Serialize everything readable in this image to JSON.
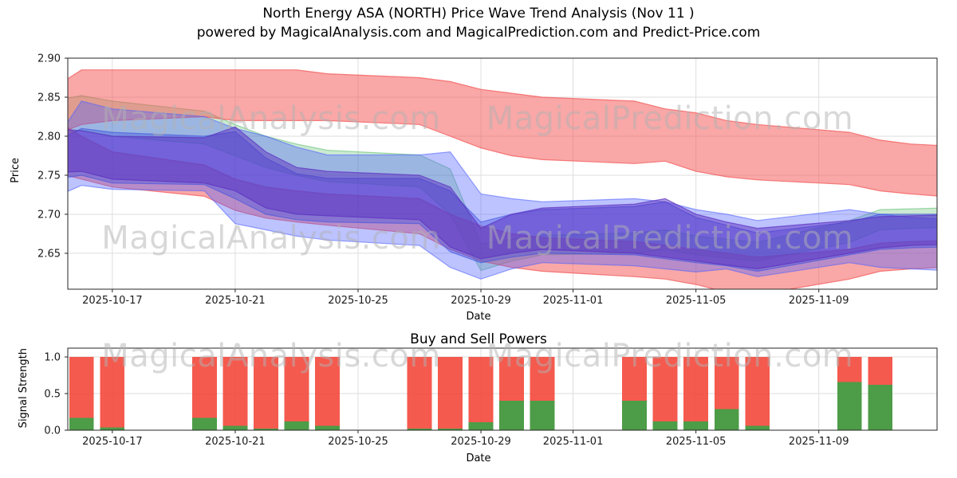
{
  "header": {
    "title": "North Energy ASA (NORTH) Price Wave Trend Analysis (Nov 11 )",
    "subtitle": "powered by MagicalAnalysis.com and MagicalPrediction.com and Predict-Price.com"
  },
  "watermarks": {
    "analysis": "MagicalAnalysis.com",
    "prediction": "MagicalPrediction.com"
  },
  "price_chart": {
    "ylabel": "Price",
    "xlabel": "Date"
  },
  "power_chart": {
    "title": "Buy and Sell Powers",
    "ylabel": "Signal Strength",
    "xlabel": "Date"
  },
  "chart_data": [
    {
      "type": "area",
      "title": "North Energy ASA (NORTH) Price Wave Trend Analysis (Nov 11 )",
      "xlabel": "Date",
      "ylabel": "Price",
      "grid": true,
      "x_start": "2025-10-15",
      "xlim_days": [
        0.55,
        28.85
      ],
      "ylim": [
        2.604,
        2.9
      ],
      "yticks": [
        {
          "label": "2.90",
          "value": 2.9
        },
        {
          "label": "2.85",
          "value": 2.85
        },
        {
          "label": "2.80",
          "value": 2.8
        },
        {
          "label": "2.75",
          "value": 2.75
        },
        {
          "label": "2.70",
          "value": 2.7
        },
        {
          "label": "2.65",
          "value": 2.65
        }
      ],
      "xticks": [
        "2025-10-17",
        "2025-10-21",
        "2025-10-25",
        "2025-10-29",
        "2025-11-01",
        "2025-11-05",
        "2025-11-09"
      ],
      "dates": [
        "2025-10-15",
        "2025-10-16",
        "2025-10-17",
        "2025-10-20",
        "2025-10-21",
        "2025-10-22",
        "2025-10-23",
        "2025-10-24",
        "2025-10-27",
        "2025-10-28",
        "2025-10-29",
        "2025-10-30",
        "2025-10-31",
        "2025-11-03",
        "2025-11-04",
        "2025-11-05",
        "2025-11-06",
        "2025-11-07",
        "2025-11-10",
        "2025-11-11",
        "2025-11-12",
        "2025-11-13"
      ],
      "bands": [
        {
          "name": "green-trend",
          "color": "#46b45a",
          "opacity": 0.28,
          "upper": [
            2.845,
            2.852,
            2.845,
            2.832,
            2.815,
            2.8,
            2.79,
            2.782,
            2.776,
            2.758,
            2.662,
            2.668,
            2.673,
            2.676,
            2.68,
            2.672,
            2.668,
            2.664,
            2.692,
            2.706,
            2.707,
            2.708
          ],
          "lower": [
            2.798,
            2.808,
            2.8,
            2.79,
            2.775,
            2.76,
            2.75,
            2.742,
            2.735,
            2.7,
            2.628,
            2.64,
            2.648,
            2.65,
            2.655,
            2.648,
            2.644,
            2.64,
            2.664,
            2.68,
            2.682,
            2.683
          ]
        },
        {
          "name": "red-upper-wave",
          "color": "#f45050",
          "opacity": 0.5,
          "upper": [
            2.86,
            2.885,
            2.885,
            2.885,
            2.885,
            2.885,
            2.885,
            2.88,
            2.875,
            2.87,
            2.86,
            2.855,
            2.85,
            2.845,
            2.835,
            2.83,
            2.82,
            2.815,
            2.805,
            2.795,
            2.79,
            2.788
          ],
          "lower": [
            2.8,
            2.815,
            2.82,
            2.825,
            2.82,
            2.82,
            2.82,
            2.82,
            2.815,
            2.8,
            2.785,
            2.775,
            2.77,
            2.765,
            2.768,
            2.755,
            2.748,
            2.744,
            2.738,
            2.73,
            2.726,
            2.723
          ]
        },
        {
          "name": "red-lower-wave",
          "color": "#f45050",
          "opacity": 0.5,
          "upper": [
            2.825,
            2.8,
            2.78,
            2.763,
            2.745,
            2.735,
            2.73,
            2.726,
            2.72,
            2.7,
            2.685,
            2.675,
            2.67,
            2.665,
            2.66,
            2.655,
            2.65,
            2.645,
            2.655,
            2.663,
            2.665,
            2.666
          ],
          "lower": [
            2.755,
            2.745,
            2.735,
            2.723,
            2.705,
            2.695,
            2.69,
            2.686,
            2.675,
            2.655,
            2.64,
            2.632,
            2.627,
            2.62,
            2.617,
            2.61,
            2.6,
            2.597,
            2.617,
            2.627,
            2.63,
            2.632
          ]
        },
        {
          "name": "blue-wide-wave",
          "color": "#5060ff",
          "opacity": 0.38,
          "upper": [
            2.786,
            2.845,
            2.835,
            2.825,
            2.81,
            2.8,
            2.786,
            2.776,
            2.776,
            2.78,
            2.726,
            2.72,
            2.716,
            2.72,
            2.716,
            2.706,
            2.7,
            2.692,
            2.706,
            2.7,
            2.696,
            2.694
          ],
          "lower": [
            2.72,
            2.737,
            2.732,
            2.73,
            2.688,
            2.68,
            2.672,
            2.667,
            2.66,
            2.632,
            2.617,
            2.63,
            2.638,
            2.634,
            2.63,
            2.626,
            2.63,
            2.62,
            2.638,
            2.632,
            2.63,
            2.628
          ]
        },
        {
          "name": "blue-core-wave",
          "color": "#3f51e0",
          "opacity": 0.4,
          "upper": [
            2.79,
            2.81,
            2.805,
            2.8,
            2.806,
            2.772,
            2.752,
            2.746,
            2.746,
            2.73,
            2.69,
            2.7,
            2.706,
            2.71,
            2.716,
            2.696,
            2.686,
            2.676,
            2.69,
            2.7,
            2.7,
            2.7
          ],
          "lower": [
            2.744,
            2.75,
            2.74,
            2.738,
            2.72,
            2.7,
            2.693,
            2.69,
            2.688,
            2.652,
            2.638,
            2.645,
            2.65,
            2.648,
            2.643,
            2.638,
            2.634,
            2.627,
            2.648,
            2.655,
            2.657,
            2.658
          ]
        },
        {
          "name": "purple-core-trend",
          "color": "#5b2fc0",
          "opacity": 0.5,
          "upper": [
            2.81,
            2.807,
            2.8,
            2.798,
            2.812,
            2.78,
            2.76,
            2.755,
            2.75,
            2.735,
            2.682,
            2.7,
            2.708,
            2.713,
            2.72,
            2.7,
            2.69,
            2.682,
            2.692,
            2.697,
            2.698,
            2.699
          ],
          "lower": [
            2.753,
            2.755,
            2.745,
            2.74,
            2.73,
            2.708,
            2.7,
            2.698,
            2.693,
            2.658,
            2.643,
            2.65,
            2.655,
            2.65,
            2.645,
            2.64,
            2.635,
            2.63,
            2.65,
            2.657,
            2.66,
            2.661
          ]
        }
      ]
    },
    {
      "type": "bar",
      "title": "Buy and Sell Powers",
      "xlabel": "Date",
      "ylabel": "Signal Strength",
      "grid": true,
      "x_start": "2025-10-15",
      "xlim_days": [
        0.55,
        28.85
      ],
      "ylim": [
        0,
        1.12
      ],
      "bar_width_days": 0.8,
      "yticks": [
        {
          "label": "1.0",
          "value": 1.0
        },
        {
          "label": "0.5",
          "value": 0.5
        },
        {
          "label": "0.0",
          "value": 0.0
        }
      ],
      "xticks": [
        "2025-10-17",
        "2025-10-21",
        "2025-10-25",
        "2025-10-29",
        "2025-11-01",
        "2025-11-05",
        "2025-11-09"
      ],
      "dates": [
        "2025-10-16",
        "2025-10-17",
        "2025-10-20",
        "2025-10-21",
        "2025-10-22",
        "2025-10-23",
        "2025-10-24",
        "2025-10-27",
        "2025-10-28",
        "2025-10-29",
        "2025-10-30",
        "2025-10-31",
        "2025-11-03",
        "2025-11-04",
        "2025-11-05",
        "2025-11-06",
        "2025-11-07",
        "2025-11-10",
        "2025-11-11"
      ],
      "series": [
        {
          "name": "sell-power",
          "color": "#f44336",
          "opacity": 0.88,
          "values": [
            1.0,
            1.0,
            1.0,
            1.0,
            1.0,
            1.0,
            1.0,
            1.0,
            1.0,
            1.0,
            1.0,
            1.0,
            1.0,
            1.0,
            1.0,
            1.0,
            1.0,
            1.0,
            1.0
          ]
        },
        {
          "name": "buy-power",
          "color": "#43a047",
          "opacity": 0.95,
          "values": [
            0.17,
            0.04,
            0.17,
            0.06,
            0.02,
            0.12,
            0.06,
            0.02,
            0.02,
            0.11,
            0.4,
            0.4,
            0.4,
            0.12,
            0.12,
            0.29,
            0.06,
            0.66,
            0.62
          ]
        }
      ]
    }
  ]
}
